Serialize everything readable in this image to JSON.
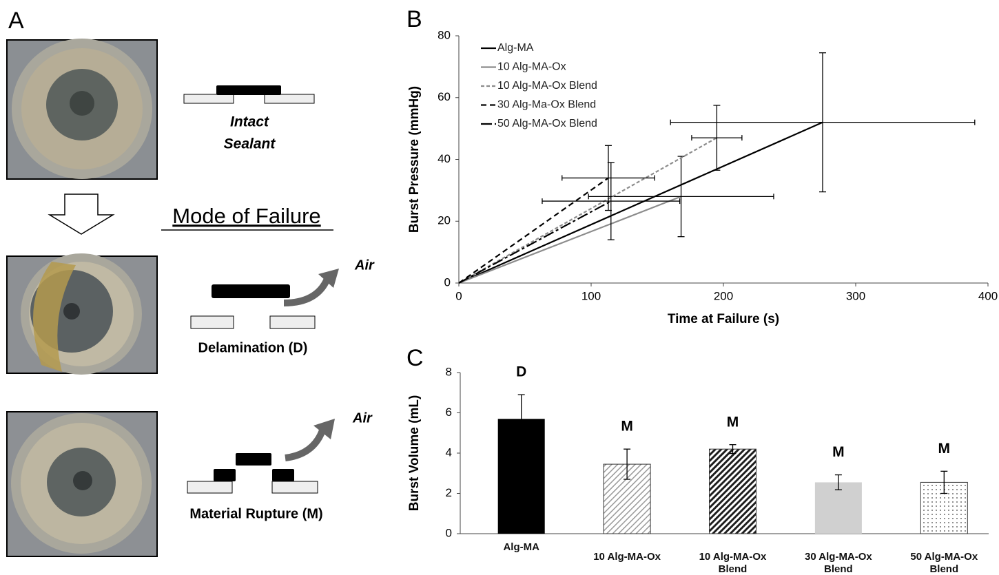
{
  "panel_labels": [
    "A",
    "B",
    "C"
  ],
  "diagram": {
    "title": "Mode of Failure",
    "intact": [
      "Intact",
      "Sealant"
    ],
    "delamination": "Delamination (D)",
    "rupture": "Material Rupture (M)",
    "air": [
      "Air",
      "Air"
    ]
  },
  "chart_data": [
    {
      "type": "line",
      "x_label": "Time at Failure (s)",
      "y_label": "Burst Pressure (mmHg)",
      "xlim": [
        0,
        400
      ],
      "xticks": [
        0,
        100,
        200,
        300,
        400
      ],
      "ylim": [
        0,
        80
      ],
      "yticks": [
        0,
        20,
        40,
        60,
        80
      ],
      "grid": false,
      "legend": "top-left",
      "series": [
        {
          "name": "Alg-MA",
          "color": "#000000",
          "dash": "none",
          "x": [
            0,
            275
          ],
          "values": [
            0,
            52
          ],
          "x_error": [
            null,
            115
          ],
          "y_error": [
            null,
            22.5
          ]
        },
        {
          "name": "10 Alg-MA-Ox",
          "color": "#8c8c8c",
          "dash": "none",
          "x": [
            0,
            168
          ],
          "values": [
            0,
            28
          ],
          "x_error": [
            null,
            70
          ],
          "y_error": [
            null,
            13
          ]
        },
        {
          "name": "10 Alg-MA-Ox Blend",
          "color": "#8c8c8c",
          "dash": "5 3",
          "x": [
            0,
            195
          ],
          "values": [
            0,
            47
          ],
          "x_error": [
            null,
            19
          ],
          "y_error": [
            null,
            10.5
          ]
        },
        {
          "name": "30 Alg-Ma-Ox Blend",
          "color": "#000000",
          "dash": "8 5",
          "x": [
            0,
            113
          ],
          "values": [
            0,
            34
          ],
          "x_error": [
            null,
            35
          ],
          "y_error": [
            null,
            10.5
          ]
        },
        {
          "name": "50 Alg-MA-Ox Blend",
          "color": "#000000",
          "dash": "16 4 4 4",
          "x": [
            0,
            115
          ],
          "values": [
            0,
            26.5
          ],
          "x_error": [
            null,
            52
          ],
          "y_error": [
            null,
            12.5
          ]
        }
      ]
    },
    {
      "type": "bar",
      "y_label": "Burst Volume (mL)",
      "ylim": [
        0,
        8
      ],
      "yticks": [
        0,
        2,
        4,
        6,
        8
      ],
      "grid": false,
      "categories": [
        "Alg-MA",
        "10 Alg-MA-Ox",
        "10 Alg-MA-Ox Blend",
        "30 Alg-MA-Ox Blend",
        "50 Alg-MA-Ox Blend"
      ],
      "values": [
        5.7,
        3.45,
        4.2,
        2.55,
        2.55
      ],
      "errors": [
        1.2,
        0.75,
        0.22,
        0.37,
        0.55
      ],
      "annotations": [
        "D",
        "M",
        "M",
        "M",
        "M"
      ],
      "colors": [
        "#000000",
        "#9a9a9a",
        "#1e1e1e",
        "#d0d0d0",
        "#444444"
      ],
      "patterns": [
        "solid",
        "diagonal",
        "diagonal",
        "solid",
        "dots"
      ]
    }
  ]
}
